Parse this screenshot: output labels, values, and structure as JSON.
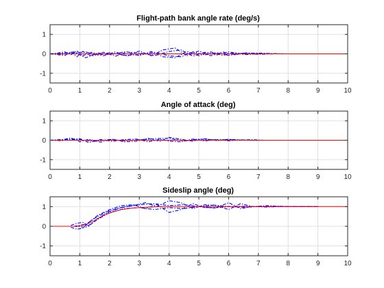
{
  "colors": {
    "envelope": "#0000ff",
    "reference": "#ff0000",
    "axis": "#262626",
    "grid": "#dfdfdf"
  },
  "chart_data": [
    {
      "type": "line",
      "title": "Flight-path bank angle rate (deg/s)",
      "xlim": [
        0,
        10
      ],
      "ylim": [
        -1.5,
        1.5
      ],
      "xticks": [
        0,
        1,
        2,
        3,
        4,
        5,
        6,
        7,
        8,
        9,
        10
      ],
      "yticks": [
        -1,
        0,
        1
      ],
      "grid": true,
      "series": [
        {
          "style": "dash-dot",
          "color": "#0000ff",
          "x": [
            0,
            0.3,
            0.5,
            0.7,
            0.9,
            1.1,
            1.4,
            1.8,
            2.2,
            2.6,
            3.0,
            3.4,
            3.8,
            4.2,
            4.6,
            5.0,
            5.4,
            5.8,
            6.2,
            6.6,
            7.0,
            7.4,
            7.8
          ],
          "y": [
            0,
            0.05,
            0.1,
            -0.05,
            0.15,
            -0.1,
            0.08,
            -0.1,
            0.1,
            -0.12,
            0.15,
            -0.1,
            0.2,
            0.3,
            -0.1,
            0.15,
            -0.1,
            0.1,
            -0.05,
            0.05,
            0.02,
            0.0,
            0
          ]
        },
        {
          "style": "dash-dot",
          "color": "#0000ff",
          "x": [
            0,
            0.3,
            0.5,
            0.7,
            0.9,
            1.1,
            1.4,
            1.8,
            2.2,
            2.6,
            3.0,
            3.4,
            3.8,
            4.2,
            4.6,
            5.0,
            5.4,
            5.8,
            6.2,
            6.6,
            7.0,
            7.4,
            7.8
          ],
          "y": [
            0,
            -0.05,
            -0.08,
            0.08,
            -0.15,
            0.12,
            -0.12,
            0.08,
            -0.12,
            0.1,
            -0.1,
            0.12,
            -0.15,
            -0.2,
            0.12,
            -0.1,
            0.1,
            -0.08,
            0.06,
            -0.04,
            0.0,
            0.02,
            0
          ]
        },
        {
          "style": "dash-dot",
          "color": "#0000ff",
          "x": [
            0,
            0.4,
            0.8,
            1.2,
            1.6,
            2.0,
            2.5,
            3.0,
            3.5,
            4.0,
            4.4,
            4.8,
            5.2,
            5.6,
            6.0,
            6.5,
            7.0,
            7.5,
            8.0
          ],
          "y": [
            0,
            0.03,
            0.1,
            -0.2,
            0.05,
            -0.05,
            0.1,
            0.05,
            -0.1,
            0.12,
            0.2,
            -0.12,
            0.08,
            -0.06,
            0.1,
            -0.03,
            0.04,
            0.01,
            0
          ]
        },
        {
          "style": "dash-dot",
          "color": "#0000ff",
          "x": [
            0,
            0.4,
            0.8,
            1.2,
            1.6,
            2.0,
            2.5,
            3.0,
            3.5,
            4.0,
            4.4,
            4.8,
            5.2,
            5.6,
            6.0,
            6.5,
            7.0,
            7.5,
            8.0
          ],
          "y": [
            0,
            -0.03,
            0.05,
            0.1,
            -0.08,
            0.06,
            -0.08,
            -0.05,
            0.08,
            -0.1,
            -0.15,
            0.1,
            -0.06,
            0.06,
            -0.08,
            0.04,
            -0.03,
            0.0,
            0
          ]
        },
        {
          "style": "solid",
          "color": "#ff0000",
          "x": [
            0,
            10
          ],
          "y": [
            0,
            0
          ]
        }
      ]
    },
    {
      "type": "line",
      "title": "Angle of attack (deg)",
      "xlim": [
        0,
        10
      ],
      "ylim": [
        -1.5,
        1.5
      ],
      "xticks": [
        0,
        1,
        2,
        3,
        4,
        5,
        6,
        7,
        8,
        9,
        10
      ],
      "yticks": [
        -1,
        0,
        1
      ],
      "grid": true,
      "series": [
        {
          "style": "dash-dot",
          "color": "#0000ff",
          "x": [
            0,
            0.4,
            0.7,
            1.0,
            1.3,
            1.7,
            2.1,
            2.5,
            2.9,
            3.3,
            3.7,
            4.0,
            4.4,
            4.8,
            5.2,
            5.6,
            6.0,
            6.4,
            6.8,
            7.2,
            7.5
          ],
          "y": [
            0,
            0.02,
            0.12,
            -0.08,
            0.05,
            -0.1,
            0.06,
            -0.08,
            -0.05,
            0.1,
            -0.06,
            0.15,
            0.05,
            -0.05,
            0.08,
            -0.02,
            0.05,
            0.01,
            0.03,
            0.0,
            0
          ]
        },
        {
          "style": "dash-dot",
          "color": "#0000ff",
          "x": [
            0,
            0.4,
            0.7,
            1.0,
            1.3,
            1.7,
            2.1,
            2.5,
            2.9,
            3.3,
            3.7,
            4.0,
            4.4,
            4.8,
            5.2,
            5.6,
            6.0,
            6.4,
            6.8,
            7.2,
            7.5
          ],
          "y": [
            0,
            -0.02,
            0.06,
            0.08,
            -0.12,
            0.04,
            -0.06,
            0.04,
            0.06,
            -0.08,
            0.05,
            -0.05,
            -0.08,
            0.06,
            -0.04,
            0.04,
            -0.03,
            0.02,
            -0.01,
            0.0,
            0
          ]
        },
        {
          "style": "dash-dot",
          "color": "#0000ff",
          "x": [
            0,
            0.5,
            1.0,
            1.5,
            2.0,
            2.5,
            3.0,
            3.5,
            4.0,
            4.5,
            5.0,
            5.5,
            6.0,
            6.5,
            7.0
          ],
          "y": [
            0,
            0.05,
            0.03,
            -0.06,
            0.04,
            -0.03,
            0.02,
            0.08,
            0.1,
            -0.04,
            0.06,
            0.02,
            0.03,
            0.0,
            0
          ]
        },
        {
          "style": "solid",
          "color": "#ff0000",
          "x": [
            0,
            10
          ],
          "y": [
            0,
            0
          ]
        }
      ]
    },
    {
      "type": "line",
      "title": "Sideslip angle (deg)",
      "xlim": [
        0,
        10
      ],
      "ylim": [
        -1.5,
        1.5
      ],
      "xticks": [
        0,
        1,
        2,
        3,
        4,
        5,
        6,
        7,
        8,
        9,
        10
      ],
      "yticks": [
        -1,
        0,
        1
      ],
      "grid": true,
      "series": [
        {
          "style": "dash-dot",
          "color": "#0000ff",
          "x": [
            0.7,
            0.9,
            1.1,
            1.3,
            1.6,
            2.0,
            2.4,
            2.8,
            3.2,
            3.6,
            4.0,
            4.4,
            4.8,
            5.2,
            5.6,
            6.0,
            6.4,
            6.8,
            7.3,
            8.0,
            9.0
          ],
          "y": [
            0.05,
            0.15,
            0.2,
            0.0,
            0.4,
            0.75,
            0.95,
            1.05,
            1.2,
            1.0,
            1.3,
            1.2,
            0.9,
            1.1,
            1.05,
            0.85,
            1.15,
            1.0,
            1.05,
            1.0,
            1.0
          ]
        },
        {
          "style": "dash-dot",
          "color": "#0000ff",
          "x": [
            0.7,
            0.9,
            1.1,
            1.3,
            1.6,
            2.0,
            2.4,
            2.8,
            3.2,
            3.6,
            4.0,
            4.4,
            4.8,
            5.2,
            5.6,
            6.0,
            6.4,
            6.8,
            7.3,
            8.0,
            9.0
          ],
          "y": [
            -0.05,
            -0.15,
            -0.1,
            0.2,
            0.55,
            0.85,
            1.05,
            1.1,
            0.9,
            1.1,
            0.7,
            0.85,
            1.15,
            0.95,
            0.95,
            1.2,
            0.9,
            1.0,
            0.98,
            1.01,
            1.0
          ]
        },
        {
          "style": "dash-dot",
          "color": "#0000ff",
          "x": [
            0.8,
            1.2,
            1.6,
            2.0,
            2.5,
            3.0,
            3.5,
            4.0,
            4.5,
            5.0,
            5.5,
            6.0,
            6.5,
            7.0,
            8.0,
            9.0
          ],
          "y": [
            0.0,
            0.1,
            0.5,
            0.8,
            1.0,
            1.1,
            1.15,
            1.05,
            1.1,
            1.0,
            1.08,
            1.0,
            1.02,
            1.0,
            1.0,
            1.0
          ]
        },
        {
          "style": "dash-dot",
          "color": "#0000ff",
          "x": [
            0.8,
            1.2,
            1.6,
            2.0,
            2.5,
            3.0,
            3.5,
            4.0,
            4.5,
            5.0,
            5.5,
            6.0,
            6.5,
            7.0,
            8.0,
            9.0
          ],
          "y": [
            0.0,
            -0.05,
            0.35,
            0.7,
            0.9,
            0.95,
            0.85,
            0.95,
            0.9,
            1.0,
            0.93,
            1.0,
            0.97,
            1.0,
            1.0,
            1.0
          ]
        },
        {
          "style": "solid",
          "color": "#ff0000",
          "x": [
            0,
            0.9,
            1.2,
            1.5,
            1.8,
            2.1,
            2.4,
            2.8,
            3.2,
            3.6,
            4.0,
            5.0,
            10.0
          ],
          "y": [
            0,
            0,
            0.08,
            0.3,
            0.55,
            0.73,
            0.85,
            0.93,
            0.97,
            0.99,
            1.0,
            1.0,
            1.0
          ]
        }
      ]
    }
  ]
}
